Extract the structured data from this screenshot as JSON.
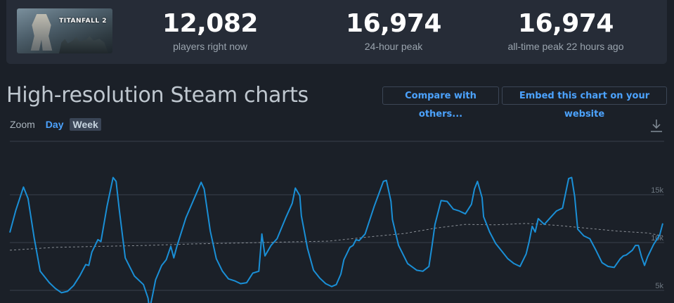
{
  "game": {
    "thumbnail_text": "TITANFALL 2"
  },
  "stats": [
    {
      "value": "12,082",
      "label": "players right now"
    },
    {
      "value": "16,974",
      "label": "24-hour peak"
    },
    {
      "value": "16,974",
      "label": "all-time peak 22 hours ago"
    }
  ],
  "chart_section": {
    "title": "High-resolution Steam charts",
    "compare_button": "Compare with others...",
    "embed_button": "Embed this chart on your website",
    "zoom_label": "Zoom",
    "zoom_options": [
      "Day",
      "Week"
    ],
    "zoom_selected": "Week",
    "download_icon": "download-icon"
  },
  "colors": {
    "line": "#1a8fd6",
    "link": "#4ca3ff",
    "avg_line": "#8a8f96",
    "grid": "#3a414b"
  },
  "chart_data": {
    "type": "line",
    "ylim": [
      4000,
      20000
    ],
    "y_ticks": [
      {
        "value": 5000,
        "label": "5k"
      },
      {
        "value": 10000,
        "label": "10k"
      },
      {
        "value": 15000,
        "label": "15k"
      }
    ],
    "series": [
      {
        "style": "solid",
        "points": [
          [
            0,
            11050
          ],
          [
            2,
            13400
          ],
          [
            4.5,
            15800
          ],
          [
            6,
            14600
          ],
          [
            8,
            10500
          ],
          [
            10,
            7000
          ],
          [
            13,
            5800
          ],
          [
            15,
            5200
          ],
          [
            17,
            4750
          ],
          [
            19,
            4900
          ],
          [
            21,
            5500
          ],
          [
            23,
            6500
          ],
          [
            25,
            7700
          ],
          [
            26,
            7600
          ],
          [
            27,
            9000
          ],
          [
            29,
            10300
          ],
          [
            30,
            10100
          ],
          [
            32,
            13800
          ],
          [
            34,
            16800
          ],
          [
            35,
            16400
          ],
          [
            36,
            13500
          ],
          [
            38,
            8400
          ],
          [
            41,
            6500
          ],
          [
            44,
            5600
          ],
          [
            45.5,
            4200
          ],
          [
            46,
            3000
          ],
          [
            47,
            4500
          ],
          [
            48,
            6100
          ],
          [
            50,
            7600
          ],
          [
            51.5,
            8200
          ],
          [
            53,
            9600
          ],
          [
            54,
            8400
          ],
          [
            55,
            9600
          ],
          [
            58,
            12600
          ],
          [
            63,
            16300
          ],
          [
            64,
            15600
          ],
          [
            66,
            11200
          ],
          [
            68,
            8300
          ],
          [
            70,
            7000
          ],
          [
            72,
            6200
          ],
          [
            74,
            6000
          ],
          [
            76,
            5700
          ],
          [
            78,
            5800
          ],
          [
            80,
            6800
          ],
          [
            82,
            7000
          ],
          [
            83,
            10900
          ],
          [
            84,
            8600
          ],
          [
            86,
            9700
          ],
          [
            88,
            10400
          ],
          [
            91,
            12700
          ],
          [
            93,
            14100
          ],
          [
            94,
            15700
          ],
          [
            95.5,
            14900
          ],
          [
            96,
            12800
          ],
          [
            98,
            9400
          ],
          [
            100,
            7100
          ],
          [
            102,
            6300
          ],
          [
            104,
            5700
          ],
          [
            106,
            5400
          ],
          [
            107.5,
            5600
          ],
          [
            109,
            6700
          ],
          [
            110,
            8200
          ],
          [
            112,
            9500
          ],
          [
            113,
            9700
          ],
          [
            114,
            10300
          ],
          [
            115,
            10200
          ],
          [
            117,
            10900
          ],
          [
            120,
            13800
          ],
          [
            123,
            16400
          ],
          [
            124,
            16500
          ],
          [
            125.5,
            14300
          ],
          [
            126,
            12400
          ],
          [
            128,
            9700
          ],
          [
            131,
            7800
          ],
          [
            134,
            7100
          ],
          [
            136,
            7000
          ],
          [
            138,
            7500
          ],
          [
            139,
            9600
          ],
          [
            140,
            11900
          ],
          [
            142,
            14400
          ],
          [
            144,
            14300
          ],
          [
            146,
            13500
          ],
          [
            148,
            13300
          ],
          [
            150,
            13000
          ],
          [
            152,
            14000
          ],
          [
            153,
            15600
          ],
          [
            154,
            16400
          ],
          [
            155.5,
            14700
          ],
          [
            156,
            12700
          ],
          [
            158,
            11100
          ],
          [
            160,
            9900
          ],
          [
            162,
            9100
          ],
          [
            164,
            8300
          ],
          [
            166,
            7800
          ],
          [
            168,
            7500
          ],
          [
            170,
            8800
          ],
          [
            171,
            10100
          ],
          [
            172,
            11700
          ],
          [
            173,
            11100
          ],
          [
            174,
            12500
          ],
          [
            176,
            11900
          ],
          [
            178,
            12600
          ],
          [
            180,
            13300
          ],
          [
            182,
            13600
          ],
          [
            184,
            16700
          ],
          [
            185,
            16800
          ],
          [
            186,
            14800
          ],
          [
            187,
            11400
          ],
          [
            189,
            10700
          ],
          [
            191,
            10400
          ],
          [
            193,
            9200
          ],
          [
            195,
            7900
          ],
          [
            197,
            7500
          ],
          [
            199,
            7400
          ],
          [
            201,
            8300
          ],
          [
            202,
            8600
          ],
          [
            203,
            8700
          ],
          [
            205,
            9200
          ],
          [
            206,
            9700
          ],
          [
            207,
            9700
          ],
          [
            208,
            8500
          ],
          [
            209,
            7600
          ],
          [
            210,
            8500
          ],
          [
            212,
            9800
          ],
          [
            214,
            10800
          ],
          [
            215,
            12000
          ]
        ]
      },
      {
        "style": "dashed",
        "points": [
          [
            0,
            9200
          ],
          [
            15,
            9500
          ],
          [
            30,
            9600
          ],
          [
            45,
            9700
          ],
          [
            60,
            9850
          ],
          [
            75,
            9950
          ],
          [
            90,
            10050
          ],
          [
            105,
            10150
          ],
          [
            120,
            10650
          ],
          [
            130,
            10950
          ],
          [
            140,
            11500
          ],
          [
            150,
            11900
          ],
          [
            160,
            11850
          ],
          [
            170,
            12000
          ],
          [
            180,
            11800
          ],
          [
            190,
            11500
          ],
          [
            200,
            11200
          ],
          [
            210,
            11000
          ],
          [
            215,
            10700
          ]
        ]
      }
    ]
  }
}
